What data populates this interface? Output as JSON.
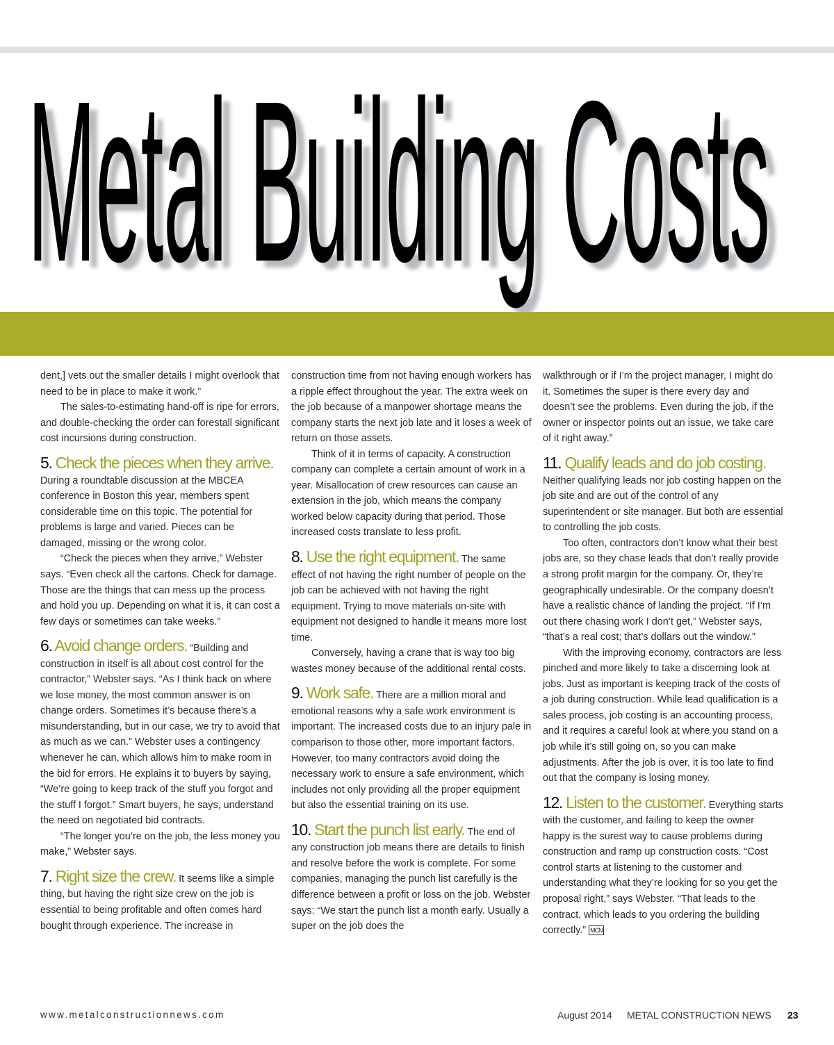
{
  "header": {
    "title": "Metal Building Costs"
  },
  "accent_color": "#aaad2a",
  "columns": [
    [
      {
        "type": "p",
        "indent": false,
        "text": "dent,] vets out the smaller details I might overlook that need to be in place to make it work.”"
      },
      {
        "type": "p",
        "indent": true,
        "text": "The sales-to-estimating hand-off is ripe for errors, and double-checking the order can forestall significant cost incursions during construction."
      },
      {
        "type": "h",
        "num": "5.",
        "heading": "Check the pieces when they arrive.",
        "runin": false,
        "text": "During a roundtable discussion at the MBCEA conference in Boston this year, members spent considerable time on this topic. The potential for problems is large and varied. Pieces can be damaged, missing or the wrong color."
      },
      {
        "type": "p",
        "indent": true,
        "text": "“Check the pieces when they arrive,” Webster says. “Even check all the cartons. Check for damage. Those are the things that can mess up the process and hold you up. Depending on what it is, it can cost a few days or sometimes can take weeks.”"
      },
      {
        "type": "h",
        "num": "6.",
        "heading": "Avoid change orders.",
        "runin": true,
        "text": "“Building and construction in itself is all about cost control for the contractor,” Webster says. “As I think back on where we lose money, the most common answer is on change orders. Sometimes it’s because there’s a misunderstanding, but in our case, we try to avoid that as much as we can.” Webster uses a contingency whenever he can, which allows him to make room in the bid for errors. He explains it to buyers by saying, “We’re going to keep track of the stuff you forgot and the stuff I forgot.” Smart buyers, he says, understand the need on negotiated bid contracts."
      },
      {
        "type": "p",
        "indent": true,
        "text": "“The longer you’re on the job, the less money you make,” Webster says."
      },
      {
        "type": "h",
        "num": "7.",
        "heading": "Right size the crew.",
        "runin": true,
        "text": "It seems like a simple thing, but having the right size crew on the job is essential to being profitable and often comes hard bought through experience. The increase in"
      }
    ],
    [
      {
        "type": "p",
        "indent": false,
        "text": "construction time from not having enough workers has a ripple effect throughout the year. The extra week on the job because of a manpower shortage means the company starts the next job late and it loses a week of return on those assets."
      },
      {
        "type": "p",
        "indent": true,
        "text": "Think of it in terms of capacity. A construction company can complete a certain amount of work in a year. Misallocation of crew resources can cause an extension in the job, which means the company worked below capacity during that period. Those increased costs translate to less profit."
      },
      {
        "type": "h",
        "num": "8.",
        "heading": "Use the right equipment.",
        "runin": true,
        "text": "The same effect of not having the right number of people on the job can be achieved with not having the right equipment. Trying to move materials on-site with equipment not designed to handle it means more lost time."
      },
      {
        "type": "p",
        "indent": true,
        "text": "Conversely, having a crane that is way too big wastes money because of the additional rental costs."
      },
      {
        "type": "h",
        "num": "9.",
        "heading": "Work safe.",
        "runin": true,
        "text": "There are a million moral and emotional reasons why a safe work environment is important. The increased costs due to an injury pale in comparison to those other, more important factors. However, too many contractors avoid doing the necessary work to ensure a safe environment, which includes not only providing all the proper equipment but also the essential training on its use."
      },
      {
        "type": "h",
        "num": "10.",
        "heading": "Start the punch list early.",
        "runin": true,
        "text": "The end of any construction job means there are details to finish and resolve before the work is complete. For some companies, managing the punch list carefully is the difference between a profit or loss on the job. Webster says: “We start the punch list a month early. Usually a super on the job does the"
      }
    ],
    [
      {
        "type": "p",
        "indent": false,
        "text": "walkthrough or if I’m the project manager, I might do it. Sometimes the super is there every day and doesn’t see the problems. Even during the job, if the owner or inspector points out an issue, we take care of it right away.”"
      },
      {
        "type": "h",
        "num": "11.",
        "heading": "Qualify leads and do job costing.",
        "runin": false,
        "text": "Neither qualifying leads nor job costing happen on the job site and are out of the control of any superintendent or site manager. But both are essential to controlling the job costs."
      },
      {
        "type": "p",
        "indent": true,
        "text": "Too often, contractors don’t know what their best jobs are, so they chase leads that don’t really provide a strong profit margin for the company. Or, they’re geographically undesirable. Or the company doesn’t have a realistic chance of landing the project. “If I’m out there chasing work I don’t get,” Webster says, “that’s a real cost; that’s dollars out the window.”"
      },
      {
        "type": "p",
        "indent": true,
        "text": "With the improving economy, contractors are less pinched and more likely to take a discerning look at jobs. Just as important is keeping track of the costs of a job during construction. While lead qualification is a sales process, job costing is an accounting process, and it requires a careful look at where you stand on a job while it’s still going on, so you can make adjustments. After the job is over, it is too late to find out that the company is losing money."
      },
      {
        "type": "h",
        "num": "12.",
        "heading": "Listen to the customer.",
        "runin": true,
        "end_mark": "MCN",
        "text": "Everything starts with the customer, and failing to keep the owner happy is the surest way to cause problems during construction and ramp up construction costs. “Cost control starts at listening to the customer and understanding what they’re looking for so you get the proposal right,” says Webster. “That leads to the contract, which leads to you ordering the building correctly.”"
      }
    ]
  ],
  "footer": {
    "url": "www.metalconstructionnews.com",
    "issue": "August 2014",
    "magazine": "METAL CONSTRUCTION NEWS",
    "page": "23"
  }
}
